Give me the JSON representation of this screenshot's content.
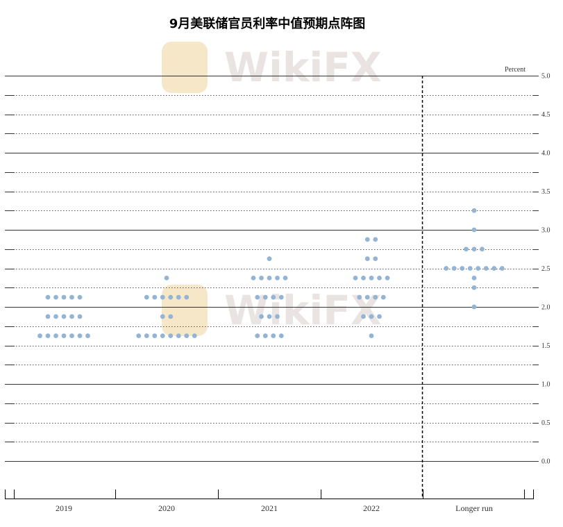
{
  "title": "9月美联储官员利率中值预期点阵图",
  "watermark": {
    "text": "WikiFX",
    "logo_color": "#f6e7c8",
    "text_color": "#e9e3e1"
  },
  "chart_data": {
    "type": "scatter",
    "title": "9月美联储官员利率中值预期点阵图",
    "unit": "Percent",
    "ylim": [
      -0.25,
      5.0
    ],
    "y_ticks": [
      "5.0",
      "4.5",
      "4.0",
      "3.5",
      "3.0",
      "2.5",
      "2.0",
      "1.5",
      "1.0",
      "0.5",
      "0.0"
    ],
    "y_tick_values": [
      5.0,
      4.5,
      4.0,
      3.5,
      3.0,
      2.5,
      2.0,
      1.5,
      1.0,
      0.5,
      0.0
    ],
    "grid": "dotted at every 0.25, solid at whole numbers",
    "categories": [
      "2019",
      "2020",
      "2021",
      "2022",
      "Longer run"
    ],
    "dot_color": "#93b4d3",
    "columns": [
      {
        "category": "2019",
        "counts": [
          {
            "rate": 2.125,
            "n": 5
          },
          {
            "rate": 1.875,
            "n": 5
          },
          {
            "rate": 1.625,
            "n": 7
          }
        ]
      },
      {
        "category": "2020",
        "counts": [
          {
            "rate": 2.375,
            "n": 1
          },
          {
            "rate": 2.125,
            "n": 6
          },
          {
            "rate": 1.875,
            "n": 2
          },
          {
            "rate": 1.625,
            "n": 8
          }
        ]
      },
      {
        "category": "2021",
        "counts": [
          {
            "rate": 2.625,
            "n": 1
          },
          {
            "rate": 2.375,
            "n": 5
          },
          {
            "rate": 2.125,
            "n": 4
          },
          {
            "rate": 1.875,
            "n": 3
          },
          {
            "rate": 1.625,
            "n": 4
          }
        ]
      },
      {
        "category": "2022",
        "counts": [
          {
            "rate": 2.875,
            "n": 2
          },
          {
            "rate": 2.625,
            "n": 2
          },
          {
            "rate": 2.375,
            "n": 5
          },
          {
            "rate": 2.125,
            "n": 4
          },
          {
            "rate": 1.875,
            "n": 3
          },
          {
            "rate": 1.625,
            "n": 1
          }
        ]
      },
      {
        "category": "Longer run",
        "counts": [
          {
            "rate": 3.25,
            "n": 1
          },
          {
            "rate": 3.0,
            "n": 1
          },
          {
            "rate": 2.75,
            "n": 3
          },
          {
            "rate": 2.5,
            "n": 8
          },
          {
            "rate": 2.375,
            "n": 1
          },
          {
            "rate": 2.25,
            "n": 1
          },
          {
            "rate": 2.0,
            "n": 1
          }
        ]
      }
    ]
  }
}
